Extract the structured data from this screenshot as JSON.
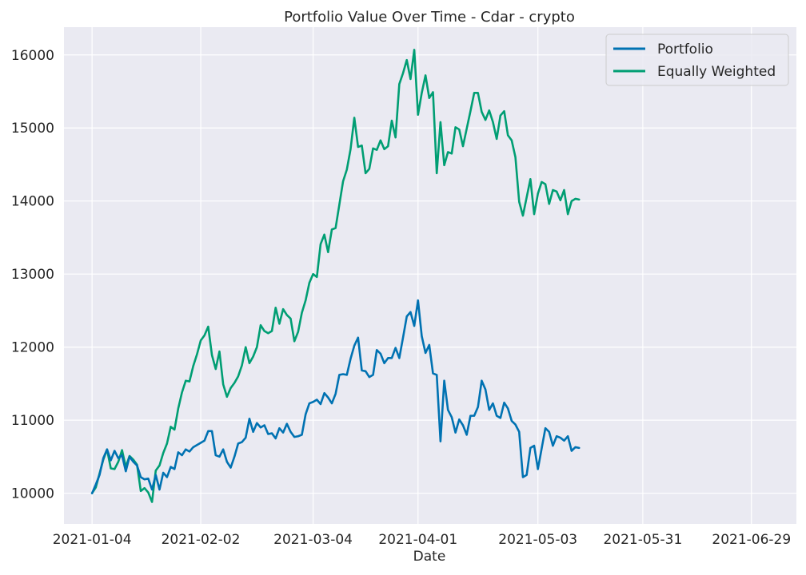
{
  "chart_data": {
    "type": "line",
    "title": "Portfolio Value Over Time - Cdar - crypto",
    "xlabel": "Date",
    "ylabel": "",
    "x_start": "2021-01-04",
    "x_step_days": 1,
    "xlim_days": [
      -7.5,
      188
    ],
    "ylim": [
      9580,
      16380
    ],
    "yticks": [
      10000,
      11000,
      12000,
      13000,
      14000,
      15000,
      16000
    ],
    "xticks": [
      {
        "label": "2021-01-04",
        "day": 0
      },
      {
        "label": "2021-02-02",
        "day": 29
      },
      {
        "label": "2021-03-04",
        "day": 59
      },
      {
        "label": "2021-04-01",
        "day": 87
      },
      {
        "label": "2021-05-03",
        "day": 119
      },
      {
        "label": "2021-05-31",
        "day": 147
      },
      {
        "label": "2021-06-29",
        "day": 176
      }
    ],
    "legend_position": "top-right",
    "grid": true,
    "background_color": "#eaeaf2",
    "series": [
      {
        "name": "Portfolio",
        "color": "#0072b2",
        "values": [
          10000,
          10120,
          10250,
          10480,
          10600,
          10450,
          10580,
          10480,
          10520,
          10300,
          10500,
          10430,
          10380,
          10220,
          10190,
          10200,
          10050,
          10250,
          10050,
          10280,
          10220,
          10360,
          10330,
          10560,
          10520,
          10600,
          10570,
          10630,
          10660,
          10690,
          10720,
          10850,
          10850,
          10520,
          10500,
          10600,
          10430,
          10350,
          10500,
          10680,
          10700,
          10760,
          11020,
          10840,
          10960,
          10900,
          10930,
          10810,
          10820,
          10750,
          10890,
          10830,
          10950,
          10840,
          10770,
          10780,
          10800,
          11080,
          11230,
          11250,
          11280,
          11220,
          11370,
          11310,
          11230,
          11360,
          11620,
          11630,
          11620,
          11840,
          12020,
          12130,
          11680,
          11670,
          11590,
          11620,
          11960,
          11910,
          11780,
          11850,
          11850,
          11990,
          11850,
          12130,
          12420,
          12480,
          12290,
          12640,
          12150,
          11920,
          12030,
          11640,
          11620,
          10710,
          11540,
          11140,
          11040,
          10830,
          11010,
          10930,
          10800,
          11060,
          11060,
          11180,
          11540,
          11420,
          11140,
          11230,
          11060,
          11030,
          11240,
          11160,
          10990,
          10940,
          10840,
          10220,
          10250,
          10620,
          10650,
          10330,
          10610,
          10890,
          10840,
          10650,
          10780,
          10760,
          10720,
          10780,
          10580,
          10630,
          10620
        ]
      },
      {
        "name": "Equally Weighted",
        "color": "#009e73",
        "values": [
          10000,
          10080,
          10270,
          10460,
          10600,
          10340,
          10330,
          10430,
          10590,
          10360,
          10510,
          10460,
          10390,
          10030,
          10070,
          10010,
          9880,
          10310,
          10380,
          10550,
          10680,
          10910,
          10870,
          11160,
          11380,
          11540,
          11530,
          11740,
          11900,
          12090,
          12160,
          12280,
          11890,
          11700,
          11940,
          11490,
          11320,
          11440,
          11510,
          11600,
          11750,
          12000,
          11780,
          11870,
          12000,
          12300,
          12220,
          12190,
          12220,
          12540,
          12320,
          12520,
          12440,
          12390,
          12080,
          12210,
          12470,
          12640,
          12880,
          13000,
          12960,
          13410,
          13540,
          13300,
          13610,
          13630,
          13950,
          14270,
          14430,
          14710,
          15140,
          14740,
          14760,
          14380,
          14440,
          14720,
          14700,
          14830,
          14710,
          14750,
          15100,
          14870,
          15600,
          15750,
          15930,
          15670,
          16070,
          15180,
          15480,
          15720,
          15410,
          15490,
          14380,
          15080,
          14490,
          14670,
          14650,
          15010,
          14980,
          14750,
          14990,
          15230,
          15480,
          15480,
          15220,
          15110,
          15240,
          15080,
          14850,
          15170,
          15230,
          14900,
          14830,
          14600,
          13990,
          13800,
          14050,
          14300,
          13820,
          14100,
          14260,
          14230,
          13960,
          14150,
          14130,
          14010,
          14150,
          13820,
          14000,
          14030,
          14020
        ]
      }
    ]
  }
}
